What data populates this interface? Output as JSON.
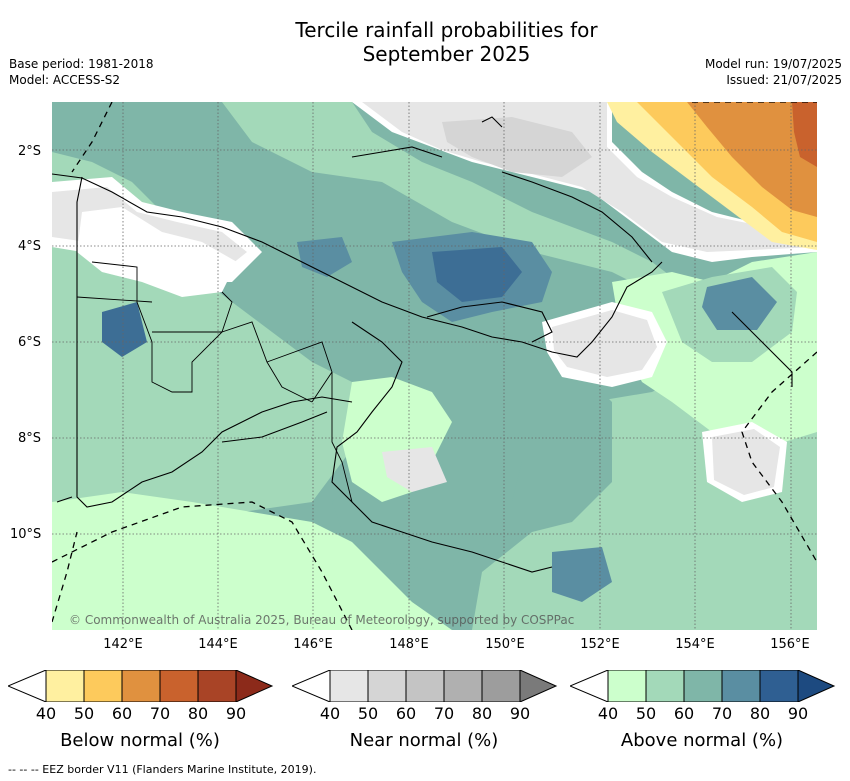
{
  "header": {
    "title_line1": "Tercile rainfall probabilities for",
    "title_line2": "September 2025",
    "base_period": "Base period: 1981-2018",
    "model": "Model: ACCESS-S2",
    "model_run": "Model run: 19/07/2025",
    "issued": "Issued: 21/07/2025"
  },
  "map": {
    "lat_labels": [
      "2°S",
      "4°S",
      "6°S",
      "8°S",
      "10°S"
    ],
    "lon_labels": [
      "142°E",
      "144°E",
      "146°E",
      "148°E",
      "150°E",
      "152°E",
      "154°E",
      "156°E"
    ],
    "copyright": "© Commonwealth of Australia 2025, Bureau of Meteorology, supported by COSPPac"
  },
  "colorbars": [
    {
      "label": "Below normal (%)",
      "ticks": [
        "40",
        "50",
        "60",
        "70",
        "80",
        "90"
      ],
      "colors": [
        "#ffffff",
        "#fff0a0",
        "#fdca5c",
        "#e0913f",
        "#c9622d",
        "#a94426",
        "#8c2a1a"
      ]
    },
    {
      "label": "Near normal (%)",
      "ticks": [
        "40",
        "50",
        "60",
        "70",
        "80",
        "90"
      ],
      "colors": [
        "#ffffff",
        "#e6e6e6",
        "#d5d5d5",
        "#c4c4c4",
        "#b0b0b0",
        "#9d9d9d",
        "#7a7a7a"
      ]
    },
    {
      "label": "Above normal (%)",
      "ticks": [
        "40",
        "50",
        "60",
        "70",
        "80",
        "90"
      ],
      "colors": [
        "#ffffff",
        "#ccffcc",
        "#a3d9b9",
        "#7fb6a8",
        "#5a8ea2",
        "#2f5f92",
        "#1d4a80"
      ]
    }
  ],
  "footnote": "--  --  -- EEZ border V11 (Flanders Marine Institute, 2019)."
}
